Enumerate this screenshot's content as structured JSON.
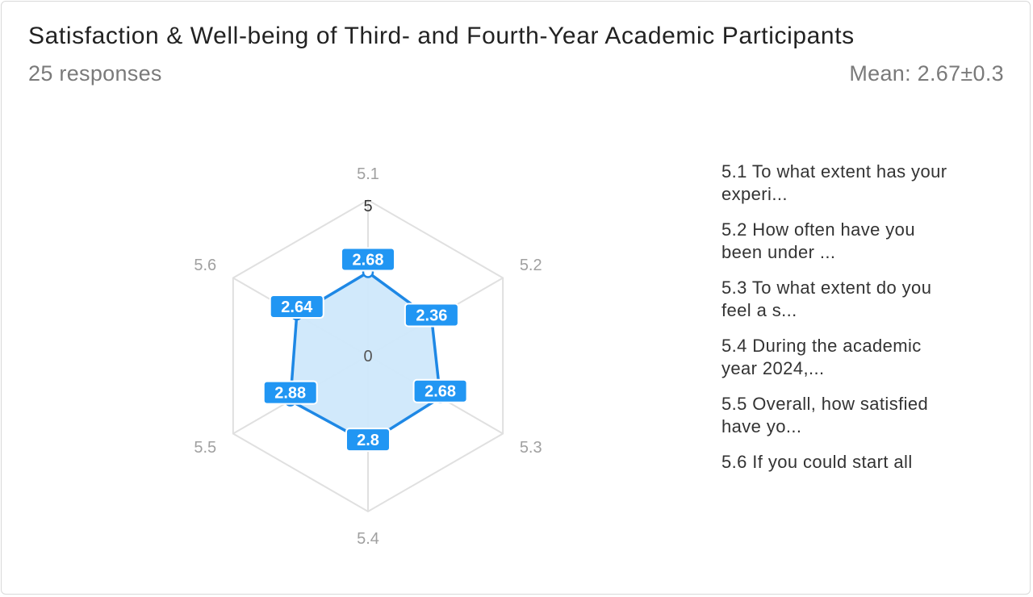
{
  "header": {
    "title": "Satisfaction & Well-being of Third- and Fourth-Year Academic Participants",
    "responses": "25 responses",
    "mean": "Mean: 2.67±0.3"
  },
  "chart_data": {
    "type": "radar",
    "categories": [
      "5.1",
      "5.2",
      "5.3",
      "5.4",
      "5.5",
      "5.6"
    ],
    "values": [
      2.68,
      2.36,
      2.68,
      2.8,
      2.88,
      2.64
    ],
    "value_labels": [
      "2.68",
      "2.36",
      "2.68",
      "2.8",
      "2.88",
      "2.64"
    ],
    "rlim": [
      0,
      5
    ],
    "axis_min_label": "0",
    "axis_max_label": "5",
    "legend": [
      "5.1 To what extent has your experi...",
      "5.2 How often have you been under ...",
      "5.3 To what extent do you feel a s...",
      "5.4 During the academic year 2024,...",
      "5.5 Overall, how satisfied have yo...",
      "5.6 If you could start all"
    ],
    "legend_position": "right",
    "grid": true,
    "colors": {
      "line": "#1e88e5",
      "fill": "#cfe8fb",
      "label_bg": "#2196f3",
      "grid": "#e0e0e0",
      "axis_label": "#a0a0a0"
    }
  }
}
